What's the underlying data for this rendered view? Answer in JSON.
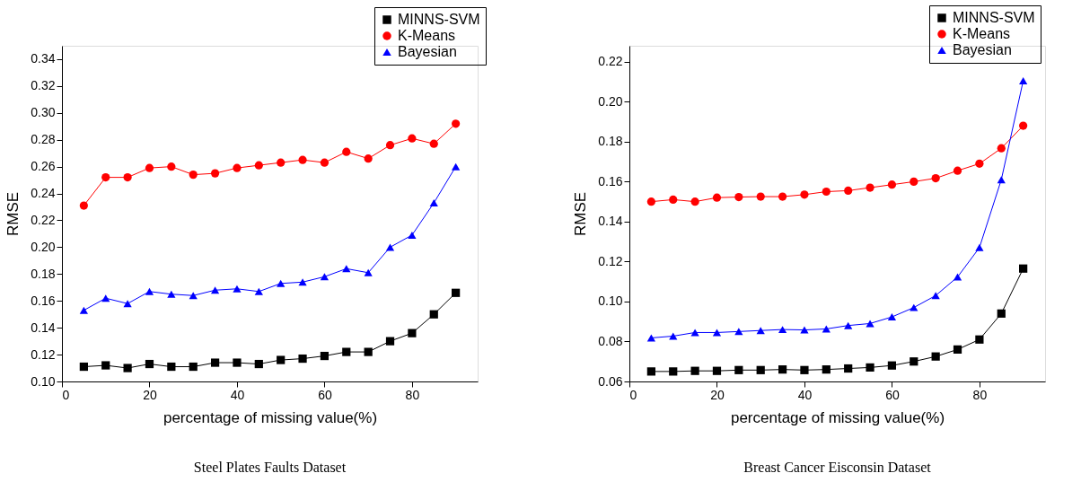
{
  "chart_data": [
    {
      "type": "line",
      "title": "Steel Plates Faults Dataset",
      "xlabel": "percentage of missing value(%)",
      "ylabel": "RMSE",
      "xlim": [
        0,
        95
      ],
      "xticks": [
        0,
        20,
        40,
        60,
        80
      ],
      "ylim": [
        0.1,
        0.35
      ],
      "yticks": [
        {
          "value": 0.1,
          "label": "0.10"
        },
        {
          "value": 0.12,
          "label": "0.12"
        },
        {
          "value": 0.14,
          "label": "0.14"
        },
        {
          "value": 0.16,
          "label": "0.16"
        },
        {
          "value": 0.18,
          "label": "0.18"
        },
        {
          "value": 0.2,
          "label": "0.20"
        },
        {
          "value": 0.22,
          "label": "0.22"
        },
        {
          "value": 0.24,
          "label": "0.24"
        },
        {
          "value": 0.26,
          "label": "0.26"
        },
        {
          "value": 0.28,
          "label": "0.28"
        },
        {
          "value": 0.3,
          "label": "0.30"
        },
        {
          "value": 0.32,
          "label": "0.32"
        },
        {
          "value": 0.34,
          "label": "0.34"
        }
      ],
      "legend": "top right",
      "grid": false,
      "x": [
        5,
        10,
        15,
        20,
        25,
        30,
        35,
        40,
        45,
        50,
        55,
        60,
        65,
        70,
        75,
        80,
        85,
        90
      ],
      "series": [
        {
          "name": "MINNS-SVM",
          "color": "#000000",
          "marker": "square",
          "values": [
            0.111,
            0.112,
            0.11,
            0.113,
            0.111,
            0.111,
            0.114,
            0.114,
            0.113,
            0.116,
            0.117,
            0.119,
            0.122,
            0.122,
            0.13,
            0.136,
            0.15,
            0.166
          ]
        },
        {
          "name": "K-Means",
          "color": "#ff0000",
          "marker": "circle",
          "values": [
            0.231,
            0.252,
            0.252,
            0.259,
            0.26,
            0.254,
            0.255,
            0.259,
            0.261,
            0.263,
            0.265,
            0.263,
            0.271,
            0.266,
            0.276,
            0.281,
            0.277,
            0.292
          ]
        },
        {
          "name": "Bayesian",
          "color": "#0000ff",
          "marker": "triangle",
          "values": [
            0.153,
            0.162,
            0.158,
            0.167,
            0.165,
            0.164,
            0.168,
            0.169,
            0.167,
            0.173,
            0.174,
            0.178,
            0.184,
            0.181,
            0.2,
            0.209,
            0.233,
            0.26
          ]
        }
      ]
    },
    {
      "type": "line",
      "title": "Breast Cancer Eisconsin Dataset",
      "xlabel": "percentage of missing value(%)",
      "ylabel": "RMSE",
      "xlim": [
        0,
        95
      ],
      "xticks": [
        0,
        20,
        40,
        60,
        80
      ],
      "ylim": [
        0.06,
        0.228
      ],
      "yticks": [
        {
          "value": 0.06,
          "label": "0.06"
        },
        {
          "value": 0.08,
          "label": "0.08"
        },
        {
          "value": 0.1,
          "label": "0.10"
        },
        {
          "value": 0.12,
          "label": "0.12"
        },
        {
          "value": 0.14,
          "label": "0.14"
        },
        {
          "value": 0.16,
          "label": "0.16"
        },
        {
          "value": 0.18,
          "label": "0.18"
        },
        {
          "value": 0.2,
          "label": "0.20"
        },
        {
          "value": 0.22,
          "label": "0.22"
        }
      ],
      "legend": "top right",
      "grid": false,
      "x": [
        5,
        10,
        15,
        20,
        25,
        30,
        35,
        40,
        45,
        50,
        55,
        60,
        65,
        70,
        75,
        80,
        85,
        90
      ],
      "series": [
        {
          "name": "MINNS-SVM",
          "color": "#000000",
          "marker": "square",
          "values": [
            0.065,
            0.065,
            0.0653,
            0.0653,
            0.0657,
            0.0657,
            0.066,
            0.0657,
            0.066,
            0.0665,
            0.067,
            0.068,
            0.07,
            0.0725,
            0.076,
            0.081,
            0.094,
            0.1165
          ]
        },
        {
          "name": "K-Means",
          "color": "#ff0000",
          "marker": "circle",
          "values": [
            0.15,
            0.151,
            0.15,
            0.152,
            0.1523,
            0.1525,
            0.1525,
            0.1535,
            0.155,
            0.1555,
            0.157,
            0.1585,
            0.16,
            0.1617,
            0.1655,
            0.169,
            0.1767,
            0.188
          ]
        },
        {
          "name": "Bayesian",
          "color": "#0000ff",
          "marker": "triangle",
          "values": [
            0.0818,
            0.0827,
            0.0845,
            0.0845,
            0.085,
            0.0855,
            0.086,
            0.0858,
            0.0863,
            0.088,
            0.089,
            0.0923,
            0.097,
            0.103,
            0.1123,
            0.127,
            0.161,
            0.2105
          ]
        }
      ]
    }
  ]
}
